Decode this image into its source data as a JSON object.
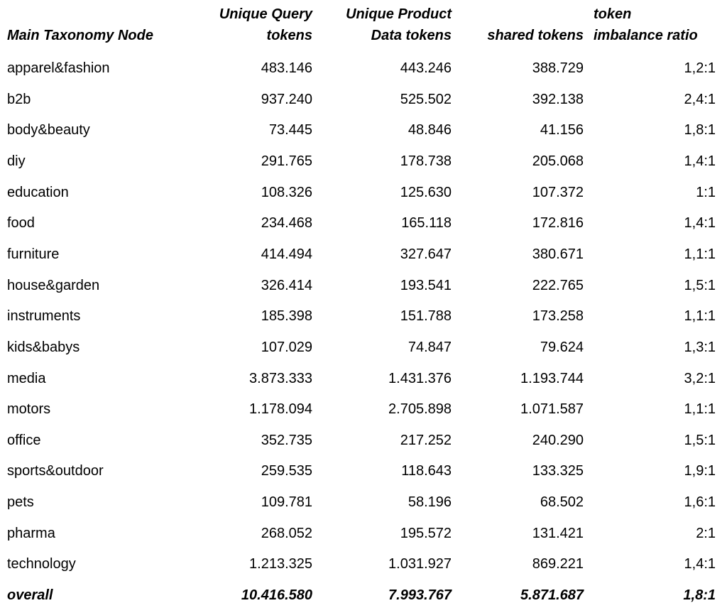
{
  "table": {
    "header": [
      [
        "Main Taxonomy Node"
      ],
      [
        "Unique Query",
        "tokens"
      ],
      [
        "Unique Product",
        "Data tokens"
      ],
      [
        "shared tokens"
      ],
      [
        "token",
        "imbalance ratio"
      ]
    ],
    "rows": [
      [
        "apparel&fashion",
        "483.146",
        "443.246",
        "388.729",
        "1,2:1"
      ],
      [
        "b2b",
        "937.240",
        "525.502",
        "392.138",
        "2,4:1"
      ],
      [
        "body&beauty",
        "73.445",
        "48.846",
        "41.156",
        "1,8:1"
      ],
      [
        "diy",
        "291.765",
        "178.738",
        "205.068",
        "1,4:1"
      ],
      [
        "education",
        "108.326",
        "125.630",
        "107.372",
        "1:1"
      ],
      [
        "food",
        "234.468",
        "165.118",
        "172.816",
        "1,4:1"
      ],
      [
        "furniture",
        "414.494",
        "327.647",
        "380.671",
        "1,1:1"
      ],
      [
        "house&garden",
        "326.414",
        "193.541",
        "222.765",
        "1,5:1"
      ],
      [
        "instruments",
        "185.398",
        "151.788",
        "173.258",
        "1,1:1"
      ],
      [
        "kids&babys",
        "107.029",
        "74.847",
        "79.624",
        "1,3:1"
      ],
      [
        "media",
        "3.873.333",
        "1.431.376",
        "1.193.744",
        "3,2:1"
      ],
      [
        "motors",
        "1.178.094",
        "2.705.898",
        "1.071.587",
        "1,1:1"
      ],
      [
        "office",
        "352.735",
        "217.252",
        "240.290",
        "1,5:1"
      ],
      [
        "sports&outdoor",
        "259.535",
        "118.643",
        "133.325",
        "1,9:1"
      ],
      [
        "pets",
        "109.781",
        "58.196",
        "68.502",
        "1,6:1"
      ],
      [
        "pharma",
        "268.052",
        "195.572",
        "131.421",
        "2:1"
      ],
      [
        "technology",
        "1.213.325",
        "1.031.927",
        "869.221",
        "1,4:1"
      ]
    ],
    "total_row": [
      "overall",
      "10.416.580",
      "7.993.767",
      "5.871.687",
      "1,8:1"
    ]
  }
}
